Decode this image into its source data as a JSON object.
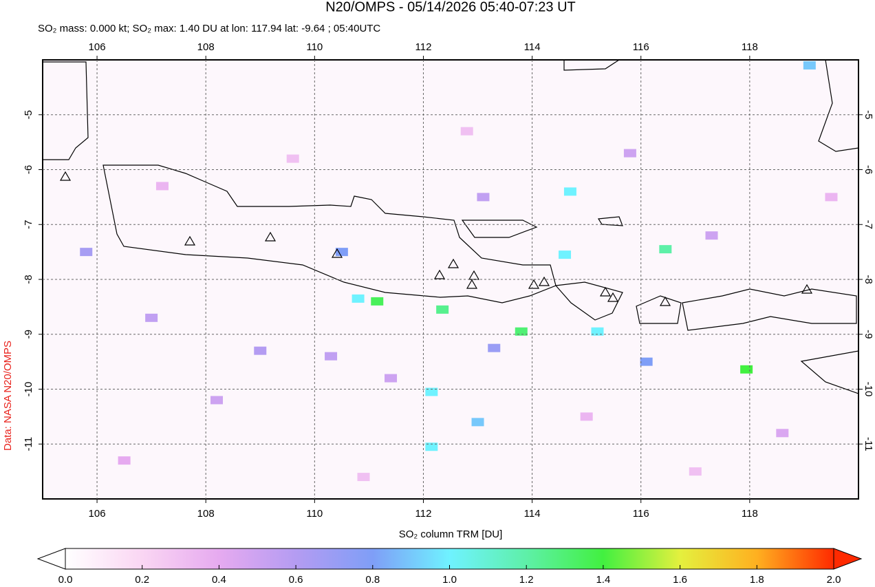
{
  "chart_data": {
    "type": "map",
    "title": "N20/OMPS - 05/14/2026 05:40-07:23 UT",
    "subtitle": "SO₂ mass: 0.000 kt; SO₂ max: 1.40 DU at lon: 117.94 lat: -9.64 ; 05:40UTC",
    "credit": "Data: NASA N20/OMPS",
    "xlim": [
      105,
      120
    ],
    "ylim": [
      -12,
      -4
    ],
    "xticks": [
      106,
      108,
      110,
      112,
      114,
      116,
      118
    ],
    "yticks": [
      -5,
      -6,
      -7,
      -8,
      -9,
      -10,
      -11
    ],
    "grid": true,
    "pixels": [
      {
        "lon": 117.94,
        "lat": -9.64,
        "value": 1.4
      },
      {
        "lon": 111.15,
        "lat": -8.4,
        "value": 1.35
      },
      {
        "lon": 110.8,
        "lat": -8.35,
        "value": 1.0
      },
      {
        "lon": 113.8,
        "lat": -8.95,
        "value": 1.3
      },
      {
        "lon": 112.35,
        "lat": -8.55,
        "value": 1.25
      },
      {
        "lon": 112.15,
        "lat": -10.05,
        "value": 1.0
      },
      {
        "lon": 115.2,
        "lat": -8.95,
        "value": 1.0
      },
      {
        "lon": 116.45,
        "lat": -7.45,
        "value": 1.2
      },
      {
        "lon": 114.7,
        "lat": -6.4,
        "value": 1.0
      },
      {
        "lon": 114.6,
        "lat": -7.55,
        "value": 1.0
      },
      {
        "lon": 110.5,
        "lat": -7.5,
        "value": 0.8
      },
      {
        "lon": 113.0,
        "lat": -10.6,
        "value": 0.9
      },
      {
        "lon": 116.1,
        "lat": -9.5,
        "value": 0.8
      },
      {
        "lon": 105.8,
        "lat": -7.5,
        "value": 0.65
      },
      {
        "lon": 119.1,
        "lat": -4.1,
        "value": 0.9
      },
      {
        "lon": 112.15,
        "lat": -11.05,
        "value": 1.0
      },
      {
        "lon": 113.3,
        "lat": -9.25,
        "value": 0.7
      },
      {
        "lon": 109.0,
        "lat": -9.3,
        "value": 0.6
      },
      {
        "lon": 107.0,
        "lat": -8.7,
        "value": 0.55
      },
      {
        "lon": 108.2,
        "lat": -10.2,
        "value": 0.5
      },
      {
        "lon": 110.3,
        "lat": -9.4,
        "value": 0.55
      },
      {
        "lon": 111.4,
        "lat": -9.8,
        "value": 0.5
      },
      {
        "lon": 113.1,
        "lat": -6.5,
        "value": 0.55
      },
      {
        "lon": 115.8,
        "lat": -5.7,
        "value": 0.5
      },
      {
        "lon": 117.3,
        "lat": -7.2,
        "value": 0.5
      },
      {
        "lon": 118.6,
        "lat": -10.8,
        "value": 0.45
      },
      {
        "lon": 107.2,
        "lat": -6.3,
        "value": 0.35
      },
      {
        "lon": 109.6,
        "lat": -5.8,
        "value": 0.3
      },
      {
        "lon": 112.8,
        "lat": -5.3,
        "value": 0.3
      },
      {
        "lon": 115.0,
        "lat": -10.5,
        "value": 0.35
      },
      {
        "lon": 117.0,
        "lat": -11.5,
        "value": 0.3
      },
      {
        "lon": 119.5,
        "lat": -6.5,
        "value": 0.35
      },
      {
        "lon": 106.5,
        "lat": -11.3,
        "value": 0.4
      },
      {
        "lon": 110.9,
        "lat": -11.6,
        "value": 0.3
      }
    ],
    "colorbar": {
      "label": "SO₂ column TRM [DU]",
      "range": [
        0,
        2
      ],
      "colors": [
        "#ffffff",
        "#fad6f3",
        "#e6aaf0",
        "#b49cf2",
        "#7f9ef7",
        "#6ff2ff",
        "#5ef0a8",
        "#42f040",
        "#e4f03e",
        "#ffb020",
        "#ff2a00"
      ],
      "ticks": [
        {
          "value": 0,
          "label": "0.0"
        },
        {
          "value": 0.2,
          "label": "0.2"
        },
        {
          "value": 0.4,
          "label": "0.4"
        },
        {
          "value": 0.6,
          "label": "0.6"
        },
        {
          "value": 0.8,
          "label": "0.8"
        },
        {
          "value": 1,
          "label": "1.0"
        },
        {
          "value": 1.2,
          "label": "1.2"
        },
        {
          "value": 1.4,
          "label": "1.4"
        },
        {
          "value": 1.6,
          "label": "1.6"
        },
        {
          "value": 1.8,
          "label": "1.8"
        },
        {
          "value": 2,
          "label": "2.0"
        }
      ]
    }
  }
}
